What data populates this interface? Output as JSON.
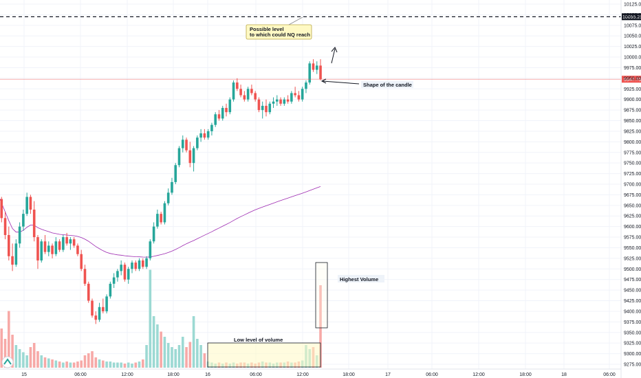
{
  "chart_data": {
    "type": "candlestick",
    "ylim": [
      9262.5,
      10137.5
    ],
    "grid": true,
    "price_ticks": [
      10125,
      10100,
      10075,
      10050,
      10025,
      10000,
      9975,
      9950,
      9925,
      9900,
      9875,
      9850,
      9825,
      9800,
      9775,
      9750,
      9725,
      9700,
      9675,
      9650,
      9625,
      9600,
      9575,
      9550,
      9525,
      9500,
      9475,
      9450,
      9425,
      9400,
      9375,
      9350,
      9325,
      9300,
      9275
    ],
    "price_tick_labels": [
      "10125.00",
      "10100.00",
      "10075.00",
      "10050.00",
      "10025.00",
      "10000.00",
      "9975.00",
      "9950.00",
      "9925.00",
      "9900.00",
      "9875.00",
      "9850.00",
      "9825.00",
      "9800.00",
      "9775.00",
      "9750.00",
      "9725.00",
      "9700.00",
      "9675.00",
      "9650.00",
      "9625.00",
      "9600.00",
      "9575.00",
      "9550.00",
      "9525.00",
      "9500.00",
      "9475.00",
      "9450.00",
      "9425.00",
      "9400.00",
      "9375.00",
      "9350.00",
      "9325.00",
      "9300.00",
      "9275.00"
    ],
    "time_labels": [
      "15",
      "06:00",
      "12:00",
      "18:00",
      "16",
      "06:00",
      "12:00",
      "18:00",
      "17",
      "06:00",
      "12:00",
      "18:00",
      "18",
      "06:00"
    ],
    "current_price": {
      "value": 9947.75,
      "label": "9947.75",
      "color": "#ef5350"
    },
    "target_level": {
      "value": 10095.25,
      "label": "10095.25",
      "color": "#131722"
    },
    "colors": {
      "up": "#26a69a",
      "down": "#ef5350",
      "vwap": "#9c27b0",
      "up_volume": "#9cd9d3",
      "down_volume": "#f7a9a7",
      "grid": "#f0f3fa"
    },
    "candles": [
      {
        "o": 9700,
        "h": 9705,
        "l": 9660,
        "c": 9665
      },
      {
        "o": 9665,
        "h": 9670,
        "l": 9610,
        "c": 9620
      },
      {
        "o": 9620,
        "h": 9635,
        "l": 9570,
        "c": 9580
      },
      {
        "o": 9580,
        "h": 9600,
        "l": 9520,
        "c": 9530
      },
      {
        "o": 9530,
        "h": 9560,
        "l": 9495,
        "c": 9510
      },
      {
        "o": 9510,
        "h": 9570,
        "l": 9505,
        "c": 9560
      },
      {
        "o": 9560,
        "h": 9610,
        "l": 9550,
        "c": 9600
      },
      {
        "o": 9600,
        "h": 9640,
        "l": 9590,
        "c": 9630
      },
      {
        "o": 9630,
        "h": 9680,
        "l": 9625,
        "c": 9670
      },
      {
        "o": 9670,
        "h": 9675,
        "l": 9630,
        "c": 9640
      },
      {
        "o": 9640,
        "h": 9660,
        "l": 9565,
        "c": 9575
      },
      {
        "o": 9575,
        "h": 9580,
        "l": 9500,
        "c": 9520
      },
      {
        "o": 9520,
        "h": 9570,
        "l": 9515,
        "c": 9565
      },
      {
        "o": 9565,
        "h": 9580,
        "l": 9535,
        "c": 9540
      },
      {
        "o": 9540,
        "h": 9565,
        "l": 9530,
        "c": 9555
      },
      {
        "o": 9555,
        "h": 9560,
        "l": 9525,
        "c": 9535
      },
      {
        "o": 9535,
        "h": 9575,
        "l": 9530,
        "c": 9565
      },
      {
        "o": 9565,
        "h": 9570,
        "l": 9540,
        "c": 9545
      },
      {
        "o": 9545,
        "h": 9580,
        "l": 9540,
        "c": 9575
      },
      {
        "o": 9575,
        "h": 9585,
        "l": 9555,
        "c": 9560
      },
      {
        "o": 9560,
        "h": 9575,
        "l": 9545,
        "c": 9570
      },
      {
        "o": 9570,
        "h": 9575,
        "l": 9550,
        "c": 9555
      },
      {
        "o": 9555,
        "h": 9560,
        "l": 9530,
        "c": 9535
      },
      {
        "o": 9535,
        "h": 9545,
        "l": 9495,
        "c": 9500
      },
      {
        "o": 9500,
        "h": 9510,
        "l": 9460,
        "c": 9465
      },
      {
        "o": 9465,
        "h": 9470,
        "l": 9420,
        "c": 9425
      },
      {
        "o": 9425,
        "h": 9430,
        "l": 9385,
        "c": 9390
      },
      {
        "o": 9390,
        "h": 9400,
        "l": 9370,
        "c": 9380
      },
      {
        "o": 9380,
        "h": 9420,
        "l": 9375,
        "c": 9410
      },
      {
        "o": 9410,
        "h": 9430,
        "l": 9395,
        "c": 9400
      },
      {
        "o": 9400,
        "h": 9440,
        "l": 9395,
        "c": 9435
      },
      {
        "o": 9435,
        "h": 9470,
        "l": 9430,
        "c": 9465
      },
      {
        "o": 9465,
        "h": 9490,
        "l": 9455,
        "c": 9480
      },
      {
        "o": 9480,
        "h": 9500,
        "l": 9470,
        "c": 9495
      },
      {
        "o": 9495,
        "h": 9520,
        "l": 9485,
        "c": 9510
      },
      {
        "o": 9510,
        "h": 9515,
        "l": 9470,
        "c": 9475
      },
      {
        "o": 9475,
        "h": 9505,
        "l": 9465,
        "c": 9500
      },
      {
        "o": 9500,
        "h": 9520,
        "l": 9490,
        "c": 9515
      },
      {
        "o": 9515,
        "h": 9520,
        "l": 9495,
        "c": 9500
      },
      {
        "o": 9500,
        "h": 9525,
        "l": 9495,
        "c": 9520
      },
      {
        "o": 9520,
        "h": 9525,
        "l": 9500,
        "c": 9505
      },
      {
        "o": 9505,
        "h": 9530,
        "l": 9500,
        "c": 9525
      },
      {
        "o": 9525,
        "h": 9570,
        "l": 9520,
        "c": 9565
      },
      {
        "o": 9565,
        "h": 9610,
        "l": 9560,
        "c": 9600
      },
      {
        "o": 9600,
        "h": 9640,
        "l": 9595,
        "c": 9630
      },
      {
        "o": 9630,
        "h": 9635,
        "l": 9605,
        "c": 9610
      },
      {
        "o": 9610,
        "h": 9660,
        "l": 9605,
        "c": 9655
      },
      {
        "o": 9655,
        "h": 9690,
        "l": 9650,
        "c": 9680
      },
      {
        "o": 9680,
        "h": 9715,
        "l": 9675,
        "c": 9705
      },
      {
        "o": 9705,
        "h": 9750,
        "l": 9700,
        "c": 9745
      },
      {
        "o": 9745,
        "h": 9790,
        "l": 9740,
        "c": 9785
      },
      {
        "o": 9785,
        "h": 9815,
        "l": 9775,
        "c": 9805
      },
      {
        "o": 9805,
        "h": 9810,
        "l": 9775,
        "c": 9780
      },
      {
        "o": 9780,
        "h": 9800,
        "l": 9740,
        "c": 9750
      },
      {
        "o": 9750,
        "h": 9790,
        "l": 9730,
        "c": 9785
      },
      {
        "o": 9785,
        "h": 9815,
        "l": 9780,
        "c": 9810
      },
      {
        "o": 9810,
        "h": 9830,
        "l": 9800,
        "c": 9820
      },
      {
        "o": 9820,
        "h": 9830,
        "l": 9805,
        "c": 9810
      },
      {
        "o": 9810,
        "h": 9830,
        "l": 9805,
        "c": 9825
      },
      {
        "o": 9825,
        "h": 9845,
        "l": 9815,
        "c": 9840
      },
      {
        "o": 9840,
        "h": 9870,
        "l": 9835,
        "c": 9865
      },
      {
        "o": 9865,
        "h": 9875,
        "l": 9850,
        "c": 9855
      },
      {
        "o": 9855,
        "h": 9885,
        "l": 9850,
        "c": 9880
      },
      {
        "o": 9880,
        "h": 9890,
        "l": 9860,
        "c": 9870
      },
      {
        "o": 9870,
        "h": 9905,
        "l": 9865,
        "c": 9900
      },
      {
        "o": 9900,
        "h": 9945,
        "l": 9895,
        "c": 9940
      },
      {
        "o": 9940,
        "h": 9950,
        "l": 9920,
        "c": 9925
      },
      {
        "o": 9925,
        "h": 9935,
        "l": 9905,
        "c": 9910
      },
      {
        "o": 9910,
        "h": 9920,
        "l": 9895,
        "c": 9900
      },
      {
        "o": 9900,
        "h": 9930,
        "l": 9895,
        "c": 9925
      },
      {
        "o": 9925,
        "h": 9935,
        "l": 9910,
        "c": 9915
      },
      {
        "o": 9915,
        "h": 9920,
        "l": 9895,
        "c": 9900
      },
      {
        "o": 9900,
        "h": 9905,
        "l": 9870,
        "c": 9875
      },
      {
        "o": 9875,
        "h": 9895,
        "l": 9855,
        "c": 9885
      },
      {
        "o": 9885,
        "h": 9900,
        "l": 9860,
        "c": 9870
      },
      {
        "o": 9870,
        "h": 9895,
        "l": 9865,
        "c": 9890
      },
      {
        "o": 9890,
        "h": 9905,
        "l": 9880,
        "c": 9895
      },
      {
        "o": 9895,
        "h": 9910,
        "l": 9885,
        "c": 9900
      },
      {
        "o": 9900,
        "h": 9905,
        "l": 9885,
        "c": 9890
      },
      {
        "o": 9890,
        "h": 9905,
        "l": 9885,
        "c": 9900
      },
      {
        "o": 9900,
        "h": 9910,
        "l": 9890,
        "c": 9895
      },
      {
        "o": 9895,
        "h": 9920,
        "l": 9890,
        "c": 9915
      },
      {
        "o": 9915,
        "h": 9930,
        "l": 9905,
        "c": 9910
      },
      {
        "o": 9910,
        "h": 9920,
        "l": 9895,
        "c": 9900
      },
      {
        "o": 9900,
        "h": 9930,
        "l": 9895,
        "c": 9925
      },
      {
        "o": 9925,
        "h": 9945,
        "l": 9915,
        "c": 9940
      },
      {
        "o": 9940,
        "h": 9990,
        "l": 9935,
        "c": 9985
      },
      {
        "o": 9985,
        "h": 9995,
        "l": 9965,
        "c": 9970
      },
      {
        "o": 9970,
        "h": 9990,
        "l": 9960,
        "c": 9980
      },
      {
        "o": 9980,
        "h": 9995,
        "l": 9945,
        "c": 9947.75
      }
    ],
    "volume_levels": [
      0.45,
      0.38,
      0.28,
      0.55,
      0.32,
      0.22,
      0.18,
      0.15,
      0.12,
      0.2,
      0.24,
      0.16,
      0.12,
      0.1,
      0.09,
      0.08,
      0.07,
      0.06,
      0.05,
      0.06,
      0.05,
      0.05,
      0.06,
      0.07,
      0.12,
      0.14,
      0.16,
      0.1,
      0.08,
      0.07,
      0.06,
      0.06,
      0.05,
      0.05,
      0.05,
      0.04,
      0.05,
      0.04,
      0.05,
      0.06,
      0.08,
      0.22,
      0.95,
      0.5,
      0.42,
      0.35,
      0.3,
      0.24,
      0.2,
      0.18,
      0.22,
      0.3,
      0.2,
      0.25,
      0.5,
      0.28,
      0.22,
      0.14,
      0.06,
      0.05,
      0.04,
      0.05,
      0.04,
      0.05,
      0.04,
      0.05,
      0.04,
      0.05,
      0.05,
      0.04,
      0.05,
      0.04,
      0.05,
      0.06,
      0.05,
      0.05,
      0.04,
      0.05,
      0.05,
      0.05,
      0.06,
      0.05,
      0.05,
      0.06,
      0.07,
      0.22,
      0.18,
      0.2,
      0.12,
      0.8
    ],
    "annotations": {
      "possible_level": [
        "Possible level",
        "to which could NQ reach"
      ],
      "shape": "Shape of the candle",
      "highest_volume": "Highest Volume",
      "low_volume": "Low level of volume"
    }
  }
}
